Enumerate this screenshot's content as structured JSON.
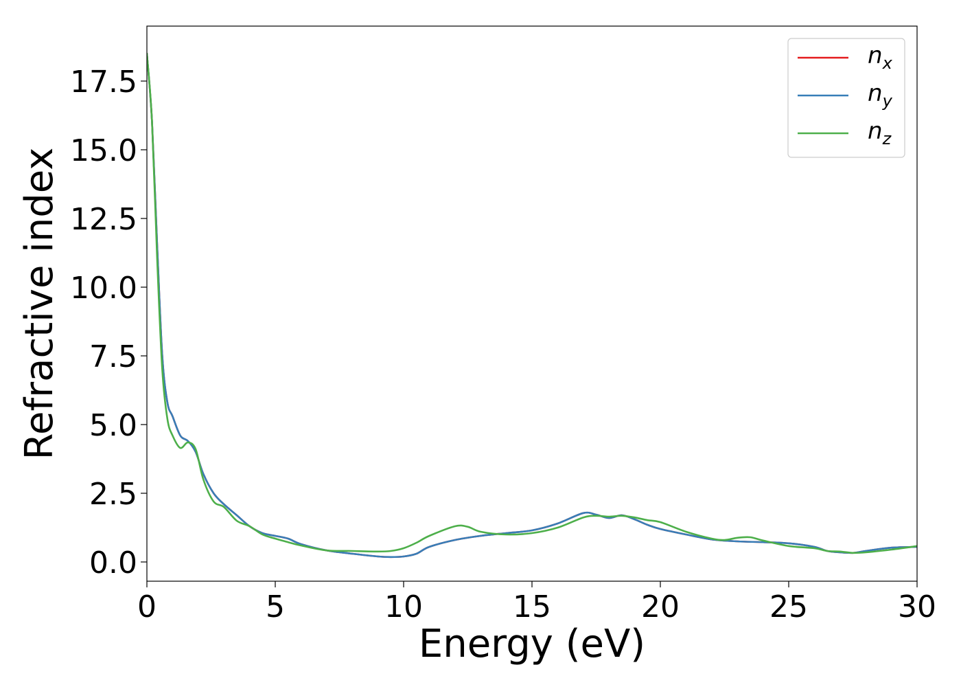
{
  "chart_data": {
    "type": "line",
    "title": "",
    "xlabel": "Energy (eV)",
    "ylabel": "Refractive index",
    "xlim": [
      0,
      30
    ],
    "ylim": [
      -0.7,
      19.5
    ],
    "xticks": [
      0,
      5,
      10,
      15,
      20,
      25,
      30
    ],
    "xtick_labels": [
      "0",
      "5",
      "10",
      "15",
      "20",
      "25",
      "30"
    ],
    "yticks": [
      0.0,
      2.5,
      5.0,
      7.5,
      10.0,
      12.5,
      15.0,
      17.5
    ],
    "ytick_labels": [
      "0.0",
      "2.5",
      "5.0",
      "7.5",
      "10.0",
      "12.5",
      "15.0",
      "17.5"
    ],
    "grid": false,
    "legend_position": "top-right",
    "series": [
      {
        "name": "n",
        "subscript": "x",
        "color": "#e41a1c",
        "x": [
          0,
          0.2,
          0.4,
          0.6,
          0.8,
          1.0,
          1.3,
          1.6,
          1.9,
          2.2,
          2.6,
          3.0,
          3.5,
          4.0,
          4.5,
          5.0,
          5.5,
          6.0,
          7.0,
          8.0,
          9.0,
          9.5,
          10.0,
          10.5,
          11.0,
          12.0,
          13.0,
          14.0,
          15.0,
          16.0,
          17.0,
          17.5,
          18.0,
          18.5,
          19.0,
          19.5,
          20.0,
          21.0,
          22.0,
          23.0,
          24.0,
          25.0,
          26.0,
          26.5,
          27.0,
          27.5,
          28.0,
          29.0,
          30.0
        ],
        "values": [
          18.5,
          16.0,
          11.5,
          7.5,
          5.8,
          5.3,
          4.6,
          4.4,
          4.0,
          3.2,
          2.5,
          2.1,
          1.7,
          1.3,
          1.05,
          0.95,
          0.85,
          0.65,
          0.42,
          0.3,
          0.2,
          0.18,
          0.2,
          0.3,
          0.55,
          0.8,
          0.95,
          1.05,
          1.15,
          1.4,
          1.78,
          1.72,
          1.6,
          1.7,
          1.55,
          1.35,
          1.2,
          1.0,
          0.82,
          0.75,
          0.72,
          0.68,
          0.55,
          0.4,
          0.35,
          0.33,
          0.4,
          0.52,
          0.55
        ]
      },
      {
        "name": "n",
        "subscript": "y",
        "color": "#377eb8",
        "x": [
          0,
          0.2,
          0.4,
          0.6,
          0.8,
          1.0,
          1.3,
          1.6,
          1.9,
          2.2,
          2.6,
          3.0,
          3.5,
          4.0,
          4.5,
          5.0,
          5.5,
          6.0,
          7.0,
          8.0,
          9.0,
          9.5,
          10.0,
          10.5,
          11.0,
          12.0,
          13.0,
          14.0,
          15.0,
          16.0,
          17.0,
          17.5,
          18.0,
          18.5,
          19.0,
          19.5,
          20.0,
          21.0,
          22.0,
          23.0,
          24.0,
          25.0,
          26.0,
          26.5,
          27.0,
          27.5,
          28.0,
          29.0,
          30.0
        ],
        "values": [
          18.5,
          16.0,
          11.5,
          7.5,
          5.8,
          5.3,
          4.6,
          4.4,
          4.0,
          3.2,
          2.5,
          2.1,
          1.7,
          1.3,
          1.05,
          0.95,
          0.85,
          0.65,
          0.42,
          0.3,
          0.2,
          0.18,
          0.2,
          0.3,
          0.55,
          0.8,
          0.95,
          1.05,
          1.15,
          1.4,
          1.78,
          1.72,
          1.6,
          1.7,
          1.55,
          1.35,
          1.2,
          1.0,
          0.82,
          0.75,
          0.72,
          0.68,
          0.55,
          0.4,
          0.35,
          0.33,
          0.4,
          0.52,
          0.55
        ]
      },
      {
        "name": "n",
        "subscript": "z",
        "color": "#4daf4a",
        "x": [
          0,
          0.2,
          0.4,
          0.6,
          0.8,
          1.0,
          1.3,
          1.6,
          1.9,
          2.2,
          2.6,
          3.0,
          3.5,
          4.0,
          4.5,
          5.0,
          5.5,
          6.0,
          7.0,
          8.0,
          9.0,
          9.5,
          10.0,
          10.5,
          11.0,
          12.0,
          12.5,
          13.0,
          14.0,
          15.0,
          16.0,
          17.0,
          17.5,
          18.0,
          18.5,
          19.0,
          19.5,
          20.0,
          21.0,
          22.0,
          22.5,
          23.0,
          23.5,
          24.0,
          25.0,
          26.0,
          26.5,
          27.0,
          27.5,
          28.0,
          29.0,
          30.0
        ],
        "values": [
          18.5,
          16.0,
          11.0,
          7.0,
          5.2,
          4.6,
          4.15,
          4.35,
          4.1,
          3.0,
          2.2,
          2.0,
          1.5,
          1.3,
          1.0,
          0.85,
          0.72,
          0.6,
          0.42,
          0.4,
          0.38,
          0.4,
          0.5,
          0.7,
          0.95,
          1.3,
          1.28,
          1.1,
          1.0,
          1.05,
          1.25,
          1.62,
          1.68,
          1.65,
          1.68,
          1.62,
          1.52,
          1.45,
          1.1,
          0.85,
          0.8,
          0.88,
          0.9,
          0.78,
          0.58,
          0.5,
          0.4,
          0.38,
          0.33,
          0.35,
          0.45,
          0.58
        ]
      }
    ]
  }
}
